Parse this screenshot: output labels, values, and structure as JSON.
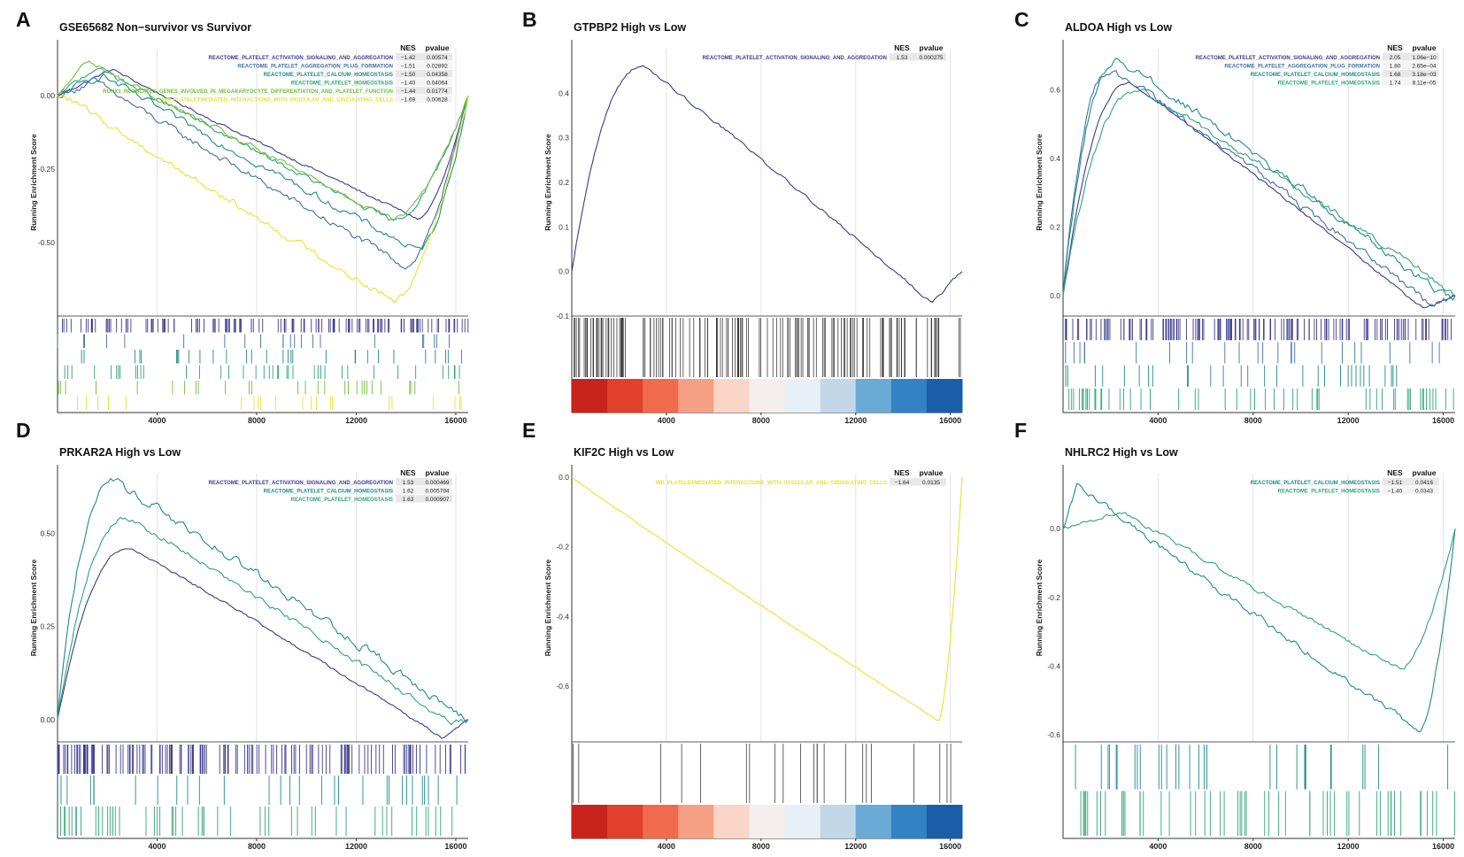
{
  "figure": {
    "y_axis_label": "Running Enrichment Score",
    "x_ticks": [
      4000,
      8000,
      12000,
      16000
    ],
    "x_max": 16500,
    "table_headers": {
      "nes": "NES",
      "pvalue": "pvalue"
    }
  },
  "palette": {
    "navy": "#3b3a8c",
    "blue": "#3f6fa8",
    "teal": "#1f8a8a",
    "green": "#2ea476",
    "lime": "#6fbf3a",
    "yellow": "#e8e32a",
    "heat": [
      "#c8231c",
      "#e0402c",
      "#ef6b4c",
      "#f5a084",
      "#fad5c6",
      "#f4eeee",
      "#e9eff7",
      "#c2d7e7",
      "#6aabd6",
      "#3382c4",
      "#1a5ea8"
    ]
  },
  "chart_data": [
    {
      "type": "line",
      "panel": "A",
      "title": "GSE65682 Non−survivor vs Survivor",
      "ylim": [
        -0.75,
        0.16
      ],
      "y_ticks": [
        {
          "v": 0.0,
          "label": "0.00"
        },
        {
          "v": -0.25,
          "label": "-0.25"
        },
        {
          "v": -0.5,
          "label": "-0.50"
        }
      ],
      "bottom": "ticks",
      "series": [
        {
          "name": "REACTOME_PLATELET_ACTIVATION_SIGNALING_AND_AGGREGATION",
          "color": "navy",
          "nes": "−1.42",
          "pvalue": "0.00574",
          "peak_x": 2200,
          "peak_y": 0.09,
          "trough_x": 14500,
          "trough_y": -0.42,
          "mode": "neg",
          "noise": 0.008,
          "hits": 140
        },
        {
          "name": "REACTOME_PLATELET_AGGREGATION_PLUG_FORMATION",
          "color": "blue",
          "nes": "−1.51",
          "pvalue": "0.02892",
          "peak_x": 1500,
          "peak_y": 0.05,
          "trough_x": 14000,
          "trough_y": -0.58,
          "mode": "neg",
          "noise": 0.02,
          "hits": 22
        },
        {
          "name": "REACTOME_PLATELET_CALCIUM_HOMEOSTASIS",
          "color": "teal",
          "nes": "−1.50",
          "pvalue": "0.04358",
          "peak_x": 1800,
          "peak_y": 0.07,
          "trough_x": 14500,
          "trough_y": -0.53,
          "mode": "neg",
          "noise": 0.02,
          "hits": 30
        },
        {
          "name": "REACTOME_PLATELET_HOMEOSTASIS",
          "color": "green",
          "nes": "−1.40",
          "pvalue": "0.04064",
          "peak_x": 1600,
          "peak_y": 0.1,
          "trough_x": 13500,
          "trough_y": -0.43,
          "mode": "neg",
          "noise": 0.015,
          "hits": 40
        },
        {
          "name": "RUNX1_REGULATES_GENES_INVOLVED_IN_MEGAKARYOCYTE_DIFFERENTIATION_AND_PLATELET_FUNCTION",
          "color": "lime",
          "nes": "−1.44",
          "pvalue": "0.01774",
          "peak_x": 1200,
          "peak_y": 0.12,
          "trough_x": 13500,
          "trough_y": -0.42,
          "mode": "neg",
          "noise": 0.015,
          "hits": 28
        },
        {
          "name": "WP_PLATELETMEDIATED_INTERACTIONS_WITH_VASCULAR_AND_CIRCULATING_CELLS",
          "color": "yellow",
          "nes": "−1.69",
          "pvalue": "0.00628",
          "peak_x": 300,
          "peak_y": 0.0,
          "trough_x": 13500,
          "trough_y": -0.7,
          "mode": "neg",
          "noise": 0.02,
          "hits": 22
        }
      ]
    },
    {
      "type": "line",
      "panel": "B",
      "title": "GTPBP2 High vs Low",
      "ylim": [
        -0.1,
        0.5
      ],
      "y_ticks": [
        {
          "v": 0.4,
          "label": "0.4"
        },
        {
          "v": 0.3,
          "label": "0.3"
        },
        {
          "v": 0.2,
          "label": "0.2"
        },
        {
          "v": 0.1,
          "label": "0.1"
        },
        {
          "v": 0.0,
          "label": "0.0"
        },
        {
          "v": -0.1,
          "label": "-0.1"
        }
      ],
      "bottom": "heat",
      "series": [
        {
          "name": "REACTOME_PLATELET_ACTIVATION_SIGNALING_AND_AGGREGATION",
          "color": "navy",
          "nes": "1.53",
          "pvalue": "0.000275",
          "peak_x": 3000,
          "peak_y": 0.46,
          "trough_x": 15200,
          "trough_y": -0.07,
          "mode": "pos",
          "noise": 0.006,
          "hits": 150
        }
      ]
    },
    {
      "type": "line",
      "panel": "C",
      "title": "ALDOA High vs Low",
      "ylim": [
        -0.06,
        0.72
      ],
      "y_ticks": [
        {
          "v": 0.6,
          "label": "0.6"
        },
        {
          "v": 0.4,
          "label": "0.4"
        },
        {
          "v": 0.2,
          "label": "0.2"
        },
        {
          "v": 0.0,
          "label": "0.0"
        }
      ],
      "bottom": "ticks",
      "series": [
        {
          "name": "REACTOME_PLATELET_ACTIVATION_SIGNALING_AND_AGGREGATION",
          "color": "navy",
          "nes": "2.05",
          "pvalue": "1.06e−10",
          "peak_x": 2800,
          "peak_y": 0.62,
          "trough_x": 15200,
          "trough_y": -0.04,
          "mode": "pos",
          "noise": 0.006,
          "hits": 150
        },
        {
          "name": "REACTOME_PLATELET_AGGREGATION_PLUG_FORMATION",
          "color": "blue",
          "nes": "1.80",
          "pvalue": "2.65e−04",
          "peak_x": 2000,
          "peak_y": 0.66,
          "trough_x": 15500,
          "trough_y": -0.03,
          "mode": "pos",
          "noise": 0.02,
          "hits": 25
        },
        {
          "name": "REACTOME_PLATELET_CALCIUM_HOMEOSTASIS",
          "color": "teal",
          "nes": "1.68",
          "pvalue": "3.18e−03",
          "peak_x": 2300,
          "peak_y": 0.69,
          "trough_x": 16000,
          "trough_y": 0.0,
          "mode": "pos",
          "noise": 0.02,
          "hits": 30
        },
        {
          "name": "REACTOME_PLATELET_HOMEOSTASIS",
          "color": "green",
          "nes": "1.74",
          "pvalue": "8.11e−05",
          "peak_x": 3200,
          "peak_y": 0.6,
          "trough_x": 16200,
          "trough_y": 0.02,
          "mode": "pos",
          "noise": 0.015,
          "hits": 55
        }
      ]
    },
    {
      "type": "line",
      "panel": "D",
      "title": "PRKAR2A High vs Low",
      "ylim": [
        -0.06,
        0.66
      ],
      "y_ticks": [
        {
          "v": 0.5,
          "label": "0.50"
        },
        {
          "v": 0.25,
          "label": "0.25"
        },
        {
          "v": 0.0,
          "label": "0.00"
        }
      ],
      "bottom": "ticks",
      "series": [
        {
          "name": "REACTOME_PLATELET_ACTIVATION_SIGNALING_AND_AGGREGATION",
          "color": "navy",
          "nes": "1.53",
          "pvalue": "0.000469",
          "peak_x": 2900,
          "peak_y": 0.46,
          "trough_x": 15500,
          "trough_y": -0.05,
          "mode": "pos",
          "noise": 0.006,
          "hits": 150
        },
        {
          "name": "REACTOME_PLATELET_CALCIUM_HOMEOSTASIS",
          "color": "teal",
          "nes": "1.62",
          "pvalue": "0.005794",
          "peak_x": 2200,
          "peak_y": 0.64,
          "trough_x": 16400,
          "trough_y": 0.0,
          "mode": "pos",
          "noise": 0.02,
          "hits": 30
        },
        {
          "name": "REACTOME_PLATELET_HOMEOSTASIS",
          "color": "green",
          "nes": "1.63",
          "pvalue": "0.000907",
          "peak_x": 2800,
          "peak_y": 0.54,
          "trough_x": 15800,
          "trough_y": -0.01,
          "mode": "pos",
          "noise": 0.012,
          "hits": 50
        }
      ]
    },
    {
      "type": "line",
      "panel": "E",
      "title": "KIF2C High vs Low",
      "ylim": [
        -0.76,
        0.01
      ],
      "y_ticks": [
        {
          "v": 0.0,
          "label": "0.0"
        },
        {
          "v": -0.2,
          "label": "-0.2"
        },
        {
          "v": -0.4,
          "label": "-0.4"
        },
        {
          "v": -0.6,
          "label": "-0.6"
        }
      ],
      "bottom": "heat",
      "series": [
        {
          "name": "WP_PLATELETMEDIATED_INTERACTIONS_WITH_VASCULAR_AND_CIRCULATING_CELLS",
          "color": "yellow",
          "nes": "−1.64",
          "pvalue": "0.0135",
          "peak_x": 0,
          "peak_y": 0.0,
          "trough_x": 15500,
          "trough_y": -0.7,
          "mode": "neg",
          "noise": 0.002,
          "hits": 22
        }
      ]
    },
    {
      "type": "line",
      "panel": "F",
      "title": "NHLRC2 High vs Low",
      "ylim": [
        -0.62,
        0.16
      ],
      "y_ticks": [
        {
          "v": 0.0,
          "label": "0.0"
        },
        {
          "v": -0.2,
          "label": "-0.2"
        },
        {
          "v": -0.4,
          "label": "-0.4"
        },
        {
          "v": -0.6,
          "label": "-0.6"
        }
      ],
      "bottom": "ticks",
      "series": [
        {
          "name": "REACTOME_PLATELET_CALCIUM_HOMEOSTASIS",
          "color": "teal",
          "nes": "−1.51",
          "pvalue": "0.0416",
          "peak_x": 600,
          "peak_y": 0.13,
          "trough_x": 15000,
          "trough_y": -0.59,
          "mode": "neg",
          "noise": 0.015,
          "hits": 30
        },
        {
          "name": "REACTOME_PLATELET_HOMEOSTASIS",
          "color": "green",
          "nes": "−1.40",
          "pvalue": "0.0343",
          "peak_x": 2500,
          "peak_y": 0.05,
          "trough_x": 14200,
          "trough_y": -0.41,
          "mode": "neg",
          "noise": 0.01,
          "hits": 55
        }
      ]
    }
  ]
}
